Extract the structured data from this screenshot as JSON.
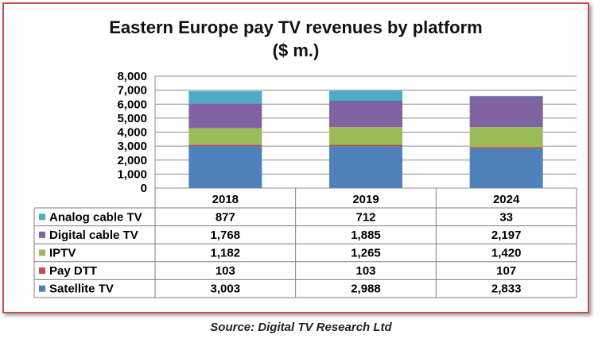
{
  "chart_data": {
    "type": "bar",
    "stacked": true,
    "title": "Eastern Europe pay TV revenues by platform",
    "subtitle": "($ m.)",
    "categories": [
      "2018",
      "2019",
      "2024"
    ],
    "ylim": [
      0,
      8000
    ],
    "yticks": [
      "0",
      "1,000",
      "2,000",
      "3,000",
      "4,000",
      "5,000",
      "6,000",
      "7,000",
      "8,000"
    ],
    "grid": true,
    "series": [
      {
        "name": "Satellite TV",
        "color": "#4f81bd",
        "values": [
          3003,
          2988,
          2833
        ],
        "labels": [
          "3,003",
          "2,988",
          "2,833"
        ]
      },
      {
        "name": "Pay DTT",
        "color": "#c0504d",
        "values": [
          103,
          103,
          107
        ],
        "labels": [
          "103",
          "103",
          "107"
        ]
      },
      {
        "name": "IPTV",
        "color": "#9bbb59",
        "values": [
          1182,
          1265,
          1420
        ],
        "labels": [
          "1,182",
          "1,265",
          "1,420"
        ]
      },
      {
        "name": "Digital cable TV",
        "color": "#8064a2",
        "values": [
          1768,
          1885,
          2197
        ],
        "labels": [
          "1,768",
          "1,885",
          "2,197"
        ]
      },
      {
        "name": "Analog cable TV",
        "color": "#4bacc6",
        "values": [
          877,
          712,
          33
        ],
        "labels": [
          "877",
          "712",
          "33"
        ]
      }
    ],
    "table_order": [
      "Analog cable TV",
      "Digital cable TV",
      "IPTV",
      "Pay DTT",
      "Satellite TV"
    ]
  },
  "source": "Source: Digital TV Research Ltd"
}
